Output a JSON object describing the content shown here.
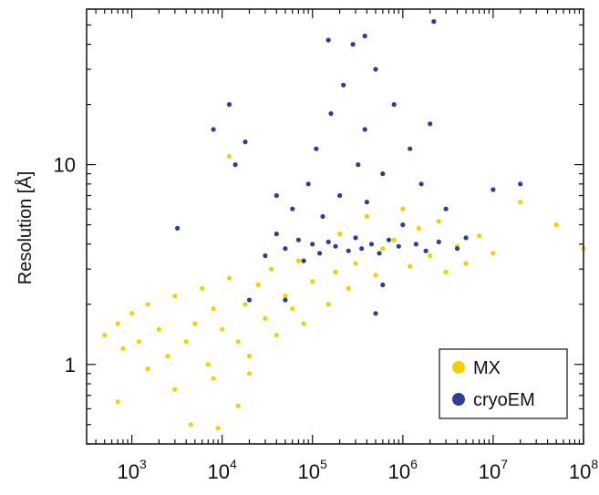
{
  "chart_data": {
    "type": "scatter",
    "title": "",
    "xlabel": "",
    "ylabel": "Resolution [Å]",
    "xscale": "log",
    "yscale": "log",
    "xlim": [
      316,
      100000000
    ],
    "ylim": [
      0.4,
      60
    ],
    "x_ticks": [
      {
        "base": "10",
        "exp": "3",
        "value": 1000
      },
      {
        "base": "10",
        "exp": "4",
        "value": 10000
      },
      {
        "base": "10",
        "exp": "5",
        "value": 100000
      },
      {
        "base": "10",
        "exp": "6",
        "value": 1000000
      },
      {
        "base": "10",
        "exp": "7",
        "value": 10000000
      },
      {
        "base": "10",
        "exp": "8",
        "value": 100000000
      }
    ],
    "y_ticks": [
      {
        "label": "1",
        "value": 1
      },
      {
        "label": "10",
        "value": 10
      }
    ],
    "grid": false,
    "legend_position": "bottom-right",
    "series": [
      {
        "name": "MX",
        "color": "#F5D000",
        "points": [
          [
            500,
            1.4
          ],
          [
            700,
            1.6
          ],
          [
            800,
            1.2
          ],
          [
            1000,
            1.8
          ],
          [
            1200,
            1.3
          ],
          [
            1500,
            2.0
          ],
          [
            2000,
            1.5
          ],
          [
            2500,
            1.1
          ],
          [
            3000,
            2.2
          ],
          [
            4000,
            1.3
          ],
          [
            5000,
            1.6
          ],
          [
            6000,
            2.4
          ],
          [
            7000,
            1.0
          ],
          [
            8000,
            1.9
          ],
          [
            10000,
            1.5
          ],
          [
            12000,
            2.7
          ],
          [
            15000,
            1.3
          ],
          [
            18000,
            2.0
          ],
          [
            20000,
            1.1
          ],
          [
            25000,
            2.5
          ],
          [
            30000,
            1.7
          ],
          [
            35000,
            3.0
          ],
          [
            40000,
            1.4
          ],
          [
            50000,
            2.2
          ],
          [
            60000,
            1.9
          ],
          [
            70000,
            3.3
          ],
          [
            80000,
            1.6
          ],
          [
            100000,
            2.6
          ],
          [
            120000,
            3.6
          ],
          [
            150000,
            2.0
          ],
          [
            180000,
            2.9
          ],
          [
            200000,
            4.5
          ],
          [
            250000,
            2.4
          ],
          [
            300000,
            3.2
          ],
          [
            400000,
            5.5
          ],
          [
            500000,
            2.8
          ],
          [
            600000,
            3.8
          ],
          [
            800000,
            4.2
          ],
          [
            1000000,
            6.0
          ],
          [
            1200000,
            3.1
          ],
          [
            1500000,
            4.8
          ],
          [
            2000000,
            3.5
          ],
          [
            2500000,
            5.2
          ],
          [
            3000000,
            2.9
          ],
          [
            4000000,
            3.9
          ],
          [
            5000000,
            3.2
          ],
          [
            7000000,
            4.4
          ],
          [
            10000000,
            3.6
          ],
          [
            20000000,
            6.5
          ],
          [
            50000000,
            5.0
          ],
          [
            100000000,
            3.8
          ],
          [
            4500,
            0.5
          ],
          [
            9000,
            0.48
          ],
          [
            15000,
            0.62
          ],
          [
            3000,
            0.75
          ],
          [
            1500,
            0.95
          ],
          [
            12000,
            11.0
          ],
          [
            700,
            0.65
          ],
          [
            8000,
            0.85
          ],
          [
            20000,
            0.9
          ]
        ]
      },
      {
        "name": "cryoEM",
        "color": "#2E3F8F",
        "points": [
          [
            30000,
            3.5
          ],
          [
            40000,
            4.5
          ],
          [
            50000,
            3.8
          ],
          [
            60000,
            6.0
          ],
          [
            70000,
            4.2
          ],
          [
            80000,
            3.3
          ],
          [
            90000,
            8.0
          ],
          [
            100000,
            4.0
          ],
          [
            110000,
            12.0
          ],
          [
            120000,
            3.6
          ],
          [
            130000,
            5.5
          ],
          [
            150000,
            4.1
          ],
          [
            160000,
            18.0
          ],
          [
            180000,
            3.9
          ],
          [
            200000,
            7.0
          ],
          [
            220000,
            25.0
          ],
          [
            250000,
            3.7
          ],
          [
            280000,
            40.0
          ],
          [
            300000,
            4.3
          ],
          [
            320000,
            10.0
          ],
          [
            350000,
            3.8
          ],
          [
            380000,
            15.0
          ],
          [
            400000,
            6.5
          ],
          [
            450000,
            4.0
          ],
          [
            500000,
            30.0
          ],
          [
            550000,
            3.6
          ],
          [
            600000,
            9.0
          ],
          [
            700000,
            4.2
          ],
          [
            800000,
            20.0
          ],
          [
            900000,
            3.9
          ],
          [
            1000000,
            5.0
          ],
          [
            1200000,
            12.0
          ],
          [
            1400000,
            4.0
          ],
          [
            1600000,
            8.0
          ],
          [
            1800000,
            3.7
          ],
          [
            2000000,
            16.0
          ],
          [
            2500000,
            4.1
          ],
          [
            3000000,
            6.0
          ],
          [
            4000000,
            3.8
          ],
          [
            5000000,
            4.3
          ],
          [
            2200000,
            52.0
          ],
          [
            380000,
            44.0
          ],
          [
            150000,
            42.0
          ],
          [
            8000,
            15.0
          ],
          [
            12000,
            20.0
          ],
          [
            14000,
            10.0
          ],
          [
            18000,
            13.0
          ],
          [
            40000,
            7.0
          ],
          [
            3200,
            4.8
          ],
          [
            10000000,
            7.5
          ],
          [
            20000000,
            8.0
          ],
          [
            50000,
            2.1
          ],
          [
            500000,
            1.8
          ],
          [
            600000,
            2.5
          ],
          [
            20000,
            2.1
          ]
        ]
      }
    ]
  }
}
